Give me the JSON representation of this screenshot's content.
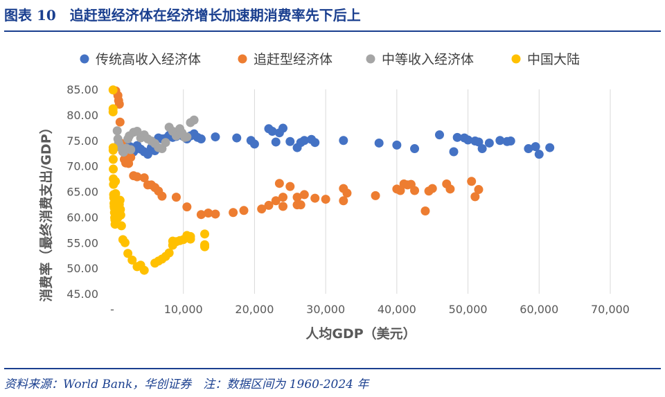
{
  "figure": {
    "title": "图表 10　追赶型经济体在经济增长加速期消费率先下后上",
    "source": "资料来源：World Bank，华创证券　注：数据区间为 1960-2024 年"
  },
  "chart_data": {
    "type": "scatter",
    "xlabel": "人均GDP（美元）",
    "ylabel": "消费率（最终消费支出/GDP）",
    "xlim": [
      0,
      70000
    ],
    "ylim": [
      45,
      85
    ],
    "x_ticks": [
      0,
      10000,
      20000,
      30000,
      40000,
      50000,
      60000,
      70000
    ],
    "x_tick_labels": [
      "-",
      "10,000",
      "20,000",
      "30,000",
      "40,000",
      "50,000",
      "60,000",
      "70,000"
    ],
    "y_ticks": [
      45,
      50,
      55,
      60,
      65,
      70,
      75,
      80,
      85
    ],
    "y_tick_labels": [
      "45.00",
      "50.00",
      "55.00",
      "60.00",
      "65.00",
      "70.00",
      "75.00",
      "80.00",
      "85.00"
    ],
    "grid": "vertical",
    "legend": "top",
    "series": [
      {
        "name": "传统高收入经济体",
        "color": "#4472c4",
        "points": [
          [
            1500,
            73.2
          ],
          [
            2000,
            74.5
          ],
          [
            2500,
            73.8
          ],
          [
            3000,
            72.8
          ],
          [
            3500,
            74
          ],
          [
            4000,
            73.3
          ],
          [
            4500,
            72.8
          ],
          [
            5000,
            72.3
          ],
          [
            5500,
            73.6
          ],
          [
            6000,
            73.0
          ],
          [
            6500,
            75.5
          ],
          [
            7000,
            75.3
          ],
          [
            7500,
            75.4
          ],
          [
            8000,
            76
          ],
          [
            8500,
            75.6
          ],
          [
            9000,
            75.8
          ],
          [
            9500,
            76.1
          ],
          [
            10000,
            75.8
          ],
          [
            10500,
            75.3
          ],
          [
            11000,
            75.9
          ],
          [
            11500,
            76.3
          ],
          [
            12000,
            75.6
          ],
          [
            12500,
            75.3
          ],
          [
            14500,
            75.7
          ],
          [
            17500,
            75.5
          ],
          [
            19500,
            75
          ],
          [
            20000,
            74.3
          ],
          [
            22000,
            77.3
          ],
          [
            22500,
            76.8
          ],
          [
            23000,
            74.7
          ],
          [
            23500,
            76.5
          ],
          [
            24000,
            77.4
          ],
          [
            25000,
            74.8
          ],
          [
            26000,
            73.6
          ],
          [
            26500,
            74.6
          ],
          [
            27000,
            75
          ],
          [
            28000,
            75.2
          ],
          [
            28500,
            74.6
          ],
          [
            32500,
            75
          ],
          [
            37500,
            74.5
          ],
          [
            40000,
            74.1
          ],
          [
            42500,
            73.4
          ],
          [
            46000,
            76.1
          ],
          [
            48000,
            72.8
          ],
          [
            48500,
            75.6
          ],
          [
            49500,
            75.5
          ],
          [
            50000,
            75.1
          ],
          [
            51000,
            74.9
          ],
          [
            51500,
            74.7
          ],
          [
            52000,
            73.4
          ],
          [
            53000,
            74.5
          ],
          [
            54500,
            75
          ],
          [
            55500,
            74.8
          ],
          [
            56000,
            74.9
          ],
          [
            58500,
            73.4
          ],
          [
            59500,
            73.8
          ],
          [
            60000,
            72.3
          ],
          [
            61500,
            73.6
          ]
        ]
      },
      {
        "name": "追赶型经济体",
        "color": "#ed7d31",
        "points": [
          [
            500,
            84.7
          ],
          [
            800,
            83.8
          ],
          [
            900,
            82.8
          ],
          [
            1000,
            82.1
          ],
          [
            1100,
            78.6
          ],
          [
            1300,
            74.4
          ],
          [
            1500,
            72.8
          ],
          [
            1700,
            71.3
          ],
          [
            1900,
            70.6
          ],
          [
            2100,
            71.8
          ],
          [
            2300,
            70.5
          ],
          [
            2600,
            71.7
          ],
          [
            3000,
            68.1
          ],
          [
            3500,
            67.9
          ],
          [
            4500,
            67.7
          ],
          [
            5000,
            66.3
          ],
          [
            5500,
            66.3
          ],
          [
            6000,
            65.8
          ],
          [
            6500,
            65.1
          ],
          [
            7000,
            64.1
          ],
          [
            9000,
            63.9
          ],
          [
            10500,
            62
          ],
          [
            12500,
            60.5
          ],
          [
            13500,
            60.8
          ],
          [
            14500,
            60.6
          ],
          [
            17000,
            60.9
          ],
          [
            18500,
            61.3
          ],
          [
            21000,
            61.6
          ],
          [
            22000,
            62.3
          ],
          [
            23000,
            63.2
          ],
          [
            23500,
            66.6
          ],
          [
            24000,
            63.9
          ],
          [
            24000,
            62.1
          ],
          [
            25000,
            66.0
          ],
          [
            26000,
            63.9
          ],
          [
            26000,
            62.4
          ],
          [
            26500,
            62.4
          ],
          [
            27000,
            64.4
          ],
          [
            28500,
            63.7
          ],
          [
            30000,
            63.5
          ],
          [
            32500,
            65.6
          ],
          [
            32500,
            63.2
          ],
          [
            33000,
            64.7
          ],
          [
            37000,
            64.2
          ],
          [
            40000,
            65.5
          ],
          [
            40500,
            65.2
          ],
          [
            41000,
            66.5
          ],
          [
            41500,
            66.3
          ],
          [
            42000,
            66.4
          ],
          [
            42500,
            65.2
          ],
          [
            44000,
            61.2
          ],
          [
            44500,
            65.1
          ],
          [
            45000,
            65.6
          ],
          [
            47000,
            66.5
          ],
          [
            47500,
            65.5
          ],
          [
            50500,
            67
          ],
          [
            51000,
            64
          ],
          [
            51500,
            65.4
          ]
        ]
      },
      {
        "name": "中等收入经济体",
        "color": "#a5a5a5",
        "points": [
          [
            700,
            76.9
          ],
          [
            800,
            75.3
          ],
          [
            900,
            74.6
          ],
          [
            1000,
            74.1
          ],
          [
            1200,
            73.6
          ],
          [
            1400,
            73.3
          ],
          [
            1600,
            72.7
          ],
          [
            1800,
            73.2
          ],
          [
            2000,
            73.5
          ],
          [
            2200,
            75.3
          ],
          [
            2400,
            75.9
          ],
          [
            2600,
            73.2
          ],
          [
            3000,
            76.6
          ],
          [
            3500,
            76.8
          ],
          [
            4000,
            75.5
          ],
          [
            4500,
            76.1
          ],
          [
            5000,
            75.3
          ],
          [
            5500,
            74.9
          ],
          [
            6000,
            74.4
          ],
          [
            6500,
            73.6
          ],
          [
            7000,
            73.4
          ],
          [
            7500,
            74.6
          ],
          [
            8000,
            77.6
          ],
          [
            8500,
            76.8
          ],
          [
            9000,
            75.9
          ],
          [
            9500,
            77.3
          ],
          [
            9800,
            76.5
          ],
          [
            10200,
            75.6
          ],
          [
            10500,
            75.7
          ],
          [
            11000,
            78.5
          ],
          [
            11500,
            79
          ]
        ]
      },
      {
        "name": "中国大陆",
        "color": "#ffc000",
        "points": [
          [
            120,
            84.9
          ],
          [
            120,
            81.2
          ],
          [
            120,
            80.6
          ],
          [
            130,
            73.6
          ],
          [
            130,
            73.1
          ],
          [
            140,
            71.3
          ],
          [
            150,
            69.4
          ],
          [
            160,
            67.5
          ],
          [
            180,
            66.4
          ],
          [
            200,
            64.4
          ],
          [
            220,
            63.8
          ],
          [
            250,
            62.7
          ],
          [
            270,
            62.1
          ],
          [
            300,
            61.8
          ],
          [
            320,
            60.9
          ],
          [
            350,
            59.9
          ],
          [
            380,
            59.5
          ],
          [
            400,
            58.6
          ],
          [
            430,
            63.6
          ],
          [
            450,
            67.0
          ],
          [
            480,
            64.6
          ],
          [
            520,
            62.6
          ],
          [
            560,
            61.1
          ],
          [
            600,
            62.4
          ],
          [
            650,
            63.1
          ],
          [
            700,
            61.0
          ],
          [
            800,
            59.9
          ],
          [
            900,
            61.1
          ],
          [
            1000,
            62.5
          ],
          [
            1100,
            63.3
          ],
          [
            1150,
            61.5
          ],
          [
            1200,
            60.4
          ],
          [
            1300,
            58.3
          ],
          [
            1500,
            55.6
          ],
          [
            1800,
            55.0
          ],
          [
            2200,
            52.9
          ],
          [
            2800,
            51.6
          ],
          [
            3500,
            50.3
          ],
          [
            4000,
            50.6
          ],
          [
            4500,
            49.6
          ],
          [
            6000,
            51.0
          ],
          [
            6500,
            51.4
          ],
          [
            7000,
            51.8
          ],
          [
            7500,
            52.3
          ],
          [
            8000,
            53.0
          ],
          [
            8500,
            54.5
          ],
          [
            8500,
            55.3
          ],
          [
            9000,
            55.2
          ],
          [
            9500,
            55.4
          ],
          [
            10000,
            55.6
          ],
          [
            10500,
            56.4
          ],
          [
            11000,
            56.2
          ],
          [
            11000,
            55.7
          ],
          [
            13000,
            54.6
          ],
          [
            13000,
            54.2
          ],
          [
            13000,
            56.7
          ],
          [
            13000,
            54.4
          ]
        ]
      }
    ]
  }
}
